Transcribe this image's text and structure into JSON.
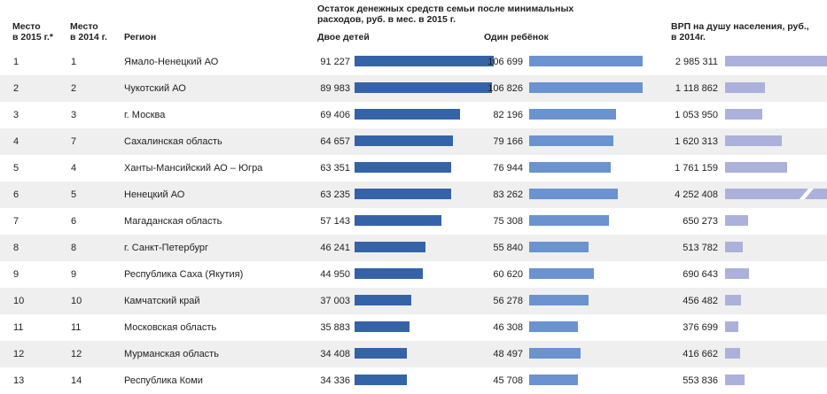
{
  "headers": {
    "rank2015": [
      "Место",
      "в 2015 г.*"
    ],
    "rank2014": [
      "Место",
      "в 2014 г."
    ],
    "region": "Регион",
    "remainder_title": [
      "Остаток денежных средств семьи после минимальных",
      "расходов, руб. в мес. в 2015 г."
    ],
    "two_children": "Двое детей",
    "one_child": "Один ребёнок",
    "gdp_title": [
      "ВРП на душу населения, руб.,",
      "в 2014г."
    ]
  },
  "colors": {
    "two_children_bar": "#3563a8",
    "one_child_bar": "#6a93cf",
    "gdp_bar": "#abb1da",
    "stripe": "#efefef"
  },
  "chart_data": {
    "type": "table",
    "columns": [
      "Место в 2015 г.*",
      "Место в 2014 г.",
      "Регион",
      "Двое детей",
      "Один ребёнок",
      "ВРП на душу населения, руб., в 2014г."
    ],
    "rows": [
      {
        "rank2015": "1",
        "rank2014": "1",
        "region": "Ямало-Ненецкий АО",
        "two": 91227,
        "two_label": "91 227",
        "one": 106699,
        "one_label": "106 699",
        "gdp": 2985311,
        "gdp_label": "2 985 311",
        "gdp_truncated": true
      },
      {
        "rank2015": "2",
        "rank2014": "2",
        "region": "Чукотский АО",
        "two": 89983,
        "two_label": "89 983",
        "one": 106826,
        "one_label": "106 826",
        "gdp": 1118862,
        "gdp_label": "1 118 862",
        "gdp_truncated": false
      },
      {
        "rank2015": "3",
        "rank2014": "3",
        "region": "г. Москва",
        "two": 69406,
        "two_label": "69 406",
        "one": 82196,
        "one_label": "82 196",
        "gdp": 1053950,
        "gdp_label": "1 053 950",
        "gdp_truncated": false
      },
      {
        "rank2015": "4",
        "rank2014": "7",
        "region": "Сахалинская область",
        "two": 64657,
        "two_label": "64 657",
        "one": 79166,
        "one_label": "79 166",
        "gdp": 1620313,
        "gdp_label": "1 620 313",
        "gdp_truncated": false
      },
      {
        "rank2015": "5",
        "rank2014": "4",
        "region": "Ханты-Мансийский АО – Югра",
        "two": 63351,
        "two_label": "63 351",
        "one": 76944,
        "one_label": "76 944",
        "gdp": 1761159,
        "gdp_label": "1 761 159",
        "gdp_truncated": false
      },
      {
        "rank2015": "6",
        "rank2014": "5",
        "region": "Ненецкий АО",
        "two": 63235,
        "two_label": "63 235",
        "one": 83262,
        "one_label": "83 262",
        "gdp": 4252408,
        "gdp_label": "4 252 408",
        "gdp_truncated": true
      },
      {
        "rank2015": "7",
        "rank2014": "6",
        "region": "Магаданская область",
        "two": 57143,
        "two_label": "57 143",
        "one": 75308,
        "one_label": "75 308",
        "gdp": 650273,
        "gdp_label": "650 273",
        "gdp_truncated": false
      },
      {
        "rank2015": "8",
        "rank2014": "8",
        "region": "г. Санкт-Петербург",
        "two": 46241,
        "two_label": "46 241",
        "one": 55840,
        "one_label": "55 840",
        "gdp": 513782,
        "gdp_label": "513 782",
        "gdp_truncated": false
      },
      {
        "rank2015": "9",
        "rank2014": "9",
        "region": "Республика Саха (Якутия)",
        "two": 44950,
        "two_label": "44 950",
        "one": 60620,
        "one_label": "60 620",
        "gdp": 690643,
        "gdp_label": "690 643",
        "gdp_truncated": false
      },
      {
        "rank2015": "10",
        "rank2014": "10",
        "region": "Камчатский край",
        "two": 37003,
        "two_label": "37 003",
        "one": 56278,
        "one_label": "56 278",
        "gdp": 456482,
        "gdp_label": "456 482",
        "gdp_truncated": false
      },
      {
        "rank2015": "11",
        "rank2014": "11",
        "region": "Московская область",
        "two": 35883,
        "two_label": "35 883",
        "one": 46308,
        "one_label": "46 308",
        "gdp": 376699,
        "gdp_label": "376 699",
        "gdp_truncated": false
      },
      {
        "rank2015": "12",
        "rank2014": "12",
        "region": "Мурманская область",
        "two": 34408,
        "two_label": "34 408",
        "one": 48497,
        "one_label": "48 497",
        "gdp": 416662,
        "gdp_label": "416 662",
        "gdp_truncated": false
      },
      {
        "rank2015": "13",
        "rank2014": "14",
        "region": "Республика Коми",
        "two": 34336,
        "two_label": "34 336",
        "one": 45708,
        "one_label": "45 708",
        "gdp": 553836,
        "gdp_label": "553 836",
        "gdp_truncated": false
      }
    ]
  }
}
